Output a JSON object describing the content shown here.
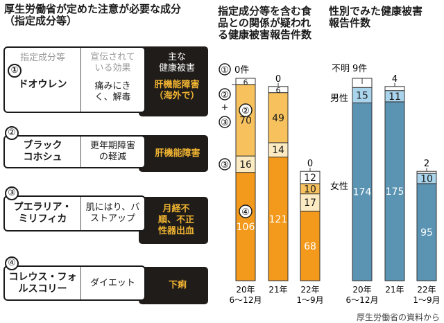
{
  "left_panel": {
    "title_line1": "厚生労働省が定めた注意が必要な成分",
    "title_line2": "（指定成分等）",
    "headers": {
      "ingredient": "指定成分等",
      "effect": "宣伝されている効果",
      "harm_line1": "主な",
      "harm_line2": "健康被害"
    },
    "rows": [
      {
        "num": "①",
        "name": "ドオウレン",
        "effect": "痛みにきく、解毒",
        "harm": "肝機能障害（海外で）"
      },
      {
        "num": "②",
        "name": "ブラックコホシュ",
        "effect": "更年期障害の軽減",
        "harm": "肝機能障害"
      },
      {
        "num": "③",
        "name": "プエラリア・ミリフィカ",
        "effect": "肌にはり、バストアップ",
        "harm": "月経不順、不正性器出血"
      },
      {
        "num": "④",
        "name": "コレウス・フォルスコリー",
        "effect": "ダイエット",
        "harm": "下痢"
      }
    ]
  },
  "source": "厚生労働省の資料から",
  "colors": {
    "orange": "#f39a1c",
    "light_orange": "#f7c25e",
    "cream": "#fcebc2",
    "white": "#ffffff",
    "blue": "#5b93b3",
    "light_blue": "#a9d4ec"
  },
  "chart_data": [
    {
      "type": "bar",
      "stacked": true,
      "title": "指定成分等を含む食品との関係が疑われる健康被害報告件数",
      "categories": [
        "20年 6～12月",
        "21年",
        "22年 1～9月"
      ],
      "series": [
        {
          "name": "④",
          "color": "#f39a1c",
          "values": [
            106,
            121,
            68
          ]
        },
        {
          "name": "③",
          "color": "#fcebc2",
          "values": [
            16,
            14,
            17
          ]
        },
        {
          "name": "②",
          "color": "#f7c25e",
          "values": [
            70,
            49,
            10
          ]
        },
        {
          "name": "②+③",
          "color": "#ffffff",
          "values": [
            6,
            6,
            12
          ]
        },
        {
          "name": "①",
          "color": "#ffffff",
          "values": [
            0,
            0,
            0
          ]
        }
      ],
      "legend": {
        "one": "①",
        "zero_unit": "0件",
        "two": "②",
        "plus": "+",
        "three": "③",
        "three_b": "③",
        "two_in": "②",
        "four_in": "④"
      },
      "top_labels": [
        "",
        "0",
        "0"
      ],
      "ylim": [
        0,
        200
      ]
    },
    {
      "type": "bar",
      "stacked": true,
      "title": "性別でみた健康被害報告件数",
      "categories": [
        "20年 6～12月",
        "21年",
        "22年 1～9月"
      ],
      "series": [
        {
          "name": "女性",
          "color": "#5b93b3",
          "values": [
            174,
            175,
            95
          ]
        },
        {
          "name": "男性",
          "color": "#a9d4ec",
          "values": [
            15,
            11,
            10
          ]
        },
        {
          "name": "不明",
          "color": "#ffffff",
          "values": [
            9,
            4,
            2
          ]
        }
      ],
      "legend": {
        "unknown": "不明",
        "unknown_first": "9件",
        "male": "男性",
        "female": "女性"
      },
      "top_labels": [
        "",
        "4",
        "2"
      ],
      "ylim": [
        0,
        200
      ]
    }
  ]
}
